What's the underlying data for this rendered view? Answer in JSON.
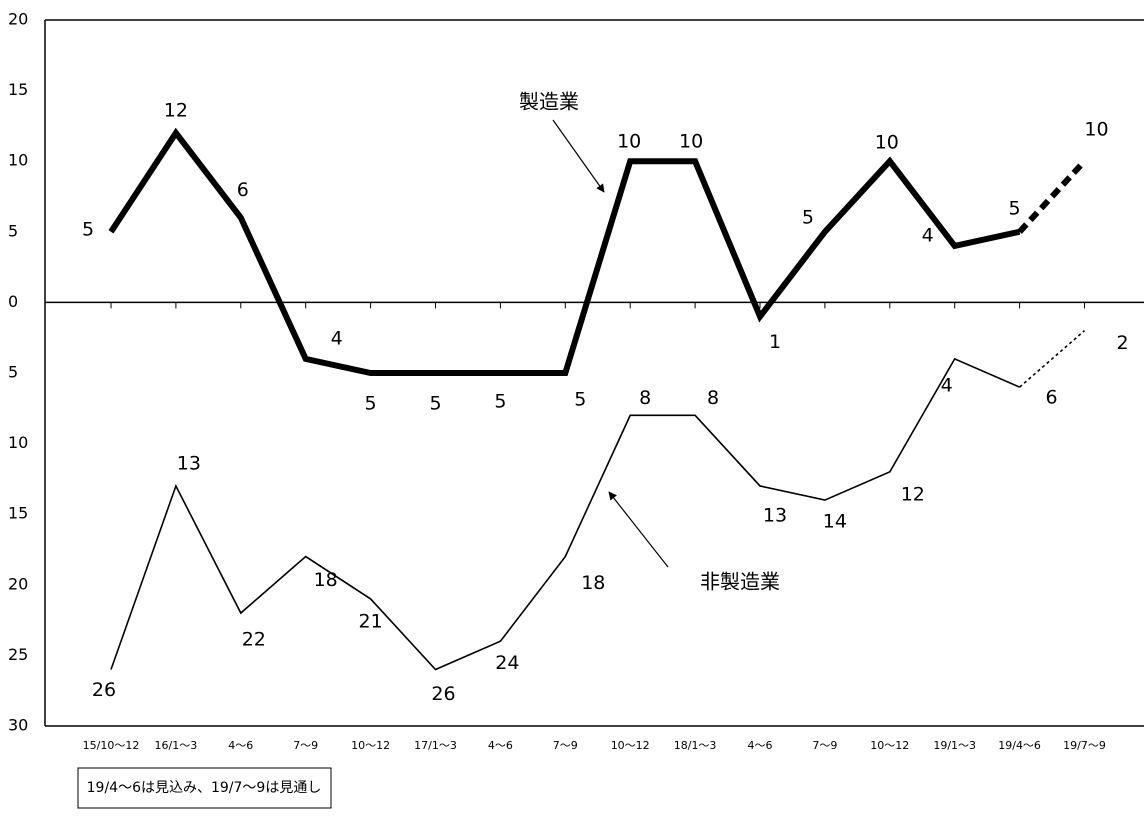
{
  "chart_data": {
    "type": "line",
    "categories": [
      "15/10～12",
      "16/1～3",
      "4～6",
      "7～9",
      "10～12",
      "17/1～3",
      "4～6",
      "7～9",
      "10～12",
      "18/1～3",
      "4～6",
      "7～9",
      "10～12",
      "19/1～3",
      "19/4～6",
      "19/7～9"
    ],
    "series": [
      {
        "name": "製造業",
        "color": "#000000",
        "values": [
          5,
          12,
          6,
          -4,
          -5,
          -5,
          -5,
          -5,
          10,
          10,
          -1,
          5,
          10,
          4,
          5,
          10
        ],
        "value_labels": [
          "5",
          "12",
          "6",
          "4",
          "5",
          "5",
          "5",
          "5",
          "10",
          "10",
          "1",
          "5",
          "10",
          "4",
          "5",
          "10"
        ]
      },
      {
        "name": "非製造業",
        "color": "#000000",
        "values": [
          -26,
          -13,
          -22,
          -18,
          -21,
          -26,
          -24,
          -18,
          -8,
          -8,
          -13,
          -14,
          -12,
          -4,
          -6,
          -2
        ],
        "value_labels": [
          "26",
          "13",
          "22",
          "18",
          "21",
          "26",
          "24",
          "18",
          "8",
          "8",
          "13",
          "14",
          "12",
          "4",
          "6",
          "2"
        ]
      }
    ],
    "dashed_from_index": 14,
    "ylim": [
      -30,
      20
    ],
    "yticks": [
      20,
      15,
      10,
      5,
      0,
      {
        "value": -5,
        "label": "5"
      },
      {
        "value": -10,
        "label": "10"
      },
      {
        "value": -15,
        "label": "15"
      },
      {
        "value": -20,
        "label": "20"
      },
      {
        "value": -25,
        "label": "25"
      },
      {
        "value": -30,
        "label": "30"
      }
    ],
    "note": "19/4～6は見込み、19/7～9は見通し"
  }
}
